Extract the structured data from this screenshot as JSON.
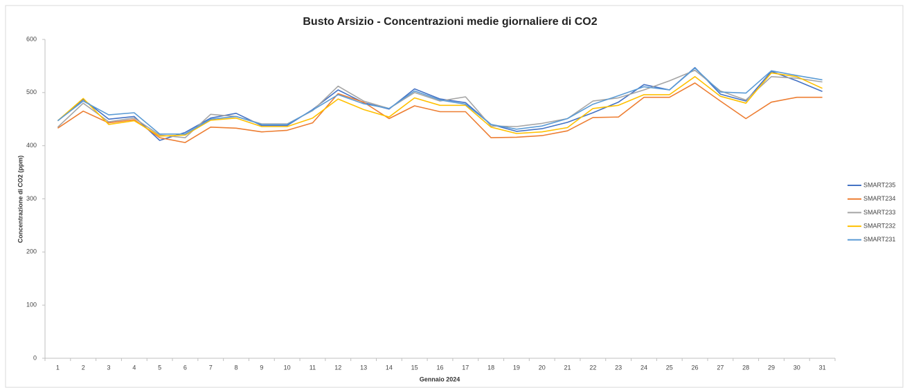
{
  "chart_data": {
    "type": "line",
    "title": "Busto Arsizio - Concentrazioni medie giornaliere di CO2",
    "x_label": "Gennaio 2024",
    "y_label": "Concentrazione di CO2 (ppm)",
    "categories": [
      "1",
      "2",
      "3",
      "4",
      "5",
      "6",
      "7",
      "8",
      "9",
      "10",
      "11",
      "12",
      "13",
      "14",
      "15",
      "16",
      "17",
      "18",
      "19",
      "20",
      "21",
      "22",
      "23",
      "24",
      "25",
      "26",
      "27",
      "28",
      "29",
      "30",
      "31"
    ],
    "series": [
      {
        "name": "SMART235",
        "color": "#4472c4",
        "values": [
          447,
          487,
          450,
          455,
          410,
          425,
          452,
          461,
          438,
          438,
          468,
          505,
          481,
          469,
          507,
          488,
          481,
          440,
          427,
          432,
          444,
          462,
          482,
          515,
          505,
          547,
          497,
          484,
          540,
          522,
          502
        ]
      },
      {
        "name": "SMART234",
        "color": "#ed7d31",
        "values": [
          433,
          465,
          443,
          449,
          415,
          406,
          435,
          433,
          426,
          429,
          443,
          498,
          482,
          451,
          475,
          464,
          464,
          415,
          416,
          419,
          428,
          453,
          454,
          491,
          491,
          518,
          484,
          451,
          482,
          491,
          491
        ]
      },
      {
        "name": "SMART233",
        "color": "#a5a5a5",
        "values": [
          435,
          480,
          445,
          452,
          420,
          415,
          459,
          455,
          441,
          441,
          466,
          512,
          484,
          470,
          500,
          484,
          492,
          437,
          436,
          442,
          451,
          484,
          490,
          505,
          522,
          542,
          503,
          486,
          530,
          527,
          520
        ]
      },
      {
        "name": "SMART232",
        "color": "#ffc000",
        "values": [
          447,
          489,
          440,
          447,
          418,
          420,
          448,
          452,
          436,
          436,
          452,
          488,
          468,
          454,
          490,
          476,
          476,
          435,
          423,
          426,
          434,
          470,
          476,
          496,
          496,
          530,
          493,
          480,
          537,
          530,
          508
        ]
      },
      {
        "name": "SMART231",
        "color": "#5b9bd5",
        "values": [
          447,
          484,
          458,
          462,
          422,
          422,
          450,
          455,
          440,
          440,
          467,
          496,
          479,
          470,
          503,
          486,
          478,
          440,
          431,
          437,
          451,
          478,
          494,
          511,
          505,
          546,
          501,
          499,
          541,
          532,
          524
        ]
      }
    ],
    "ylim": [
      0,
      600
    ],
    "yticks": [
      0,
      100,
      200,
      300,
      400,
      500,
      600
    ],
    "legend": "right"
  }
}
